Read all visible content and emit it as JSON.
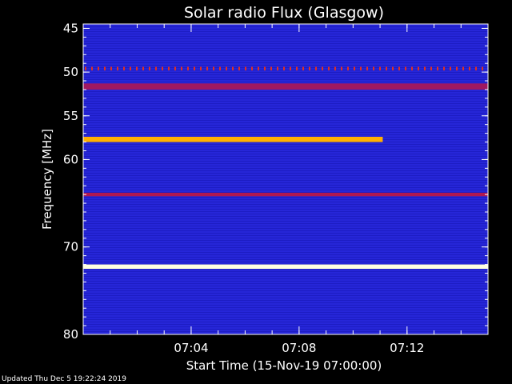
{
  "chart_data": {
    "type": "heatmap",
    "title": "Solar radio Flux (Glasgow)",
    "xlabel": "Start Time (15-Nov-19 07:00:00)",
    "ylabel": "Frequency [MHz]",
    "x_unit": "minutes after 07:00:00",
    "xlim": [
      0,
      15
    ],
    "ylim": [
      80,
      44.5
    ],
    "x_ticks": [
      {
        "value": 4,
        "label": "07:04"
      },
      {
        "value": 8,
        "label": "07:08"
      },
      {
        "value": 12,
        "label": "07:12"
      }
    ],
    "y_ticks": [
      {
        "value": 45,
        "label": "45"
      },
      {
        "value": 50,
        "label": "50"
      },
      {
        "value": 55,
        "label": "55"
      },
      {
        "value": 60,
        "label": "60"
      },
      {
        "value": 70,
        "label": "70"
      },
      {
        "value": 80,
        "label": "80"
      }
    ],
    "background_color": "#2626d8",
    "emission_bands": [
      {
        "name": "",
        "freq_from": 49.4,
        "freq_to": 49.8,
        "x_from": 0,
        "x_to": 15,
        "color": "#e03020",
        "style": "dotted"
      },
      {
        "name": "",
        "freq_from": 51.3,
        "freq_to": 52.0,
        "x_from": 0,
        "x_to": 15,
        "color": "#a01860",
        "style": "solid"
      },
      {
        "name": "",
        "freq_from": 57.4,
        "freq_to": 58.0,
        "x_from": 0,
        "x_to": 11.1,
        "color": "#ffb000",
        "style": "solid"
      },
      {
        "name": "",
        "freq_from": 63.8,
        "freq_to": 64.2,
        "x_from": 0,
        "x_to": 15,
        "color": "#b01850",
        "style": "solid"
      },
      {
        "name": "",
        "freq_from": 72.0,
        "freq_to": 72.5,
        "x_from": 0,
        "x_to": 15,
        "color": "#ffffe0",
        "style": "solid"
      }
    ]
  },
  "footer": {
    "updated": "Updated Thu Dec  5 19:22:24 2019"
  }
}
